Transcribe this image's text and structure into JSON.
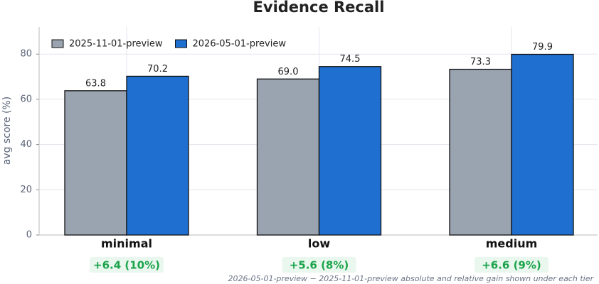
{
  "chart_data": {
    "type": "bar",
    "title": "Evidence Recall",
    "ylabel": "avg score (%)",
    "categories": [
      "minimal",
      "low",
      "medium"
    ],
    "series": [
      {
        "name": "2025-11-01-preview",
        "color": "#9aa3b0",
        "values": [
          63.8,
          69.0,
          73.3
        ],
        "value_labels": [
          "63.8",
          "69.0",
          "73.3"
        ]
      },
      {
        "name": "2026-05-01-preview",
        "color": "#1f6fd1",
        "values": [
          70.2,
          74.5,
          79.9
        ],
        "value_labels": [
          "70.2",
          "74.5",
          "79.9"
        ]
      }
    ],
    "annotations": [
      "+6.4 (10%)",
      "+5.6 (8%)",
      "+6.6 (9%)"
    ],
    "footnote": "2026-05-01-preview − 2025-11-01-preview absolute and relative gain shown under each tier",
    "ylim": [
      0,
      92
    ],
    "yticks": [
      0,
      20,
      40,
      60,
      80
    ],
    "grid": true,
    "legend": "upper-left"
  }
}
